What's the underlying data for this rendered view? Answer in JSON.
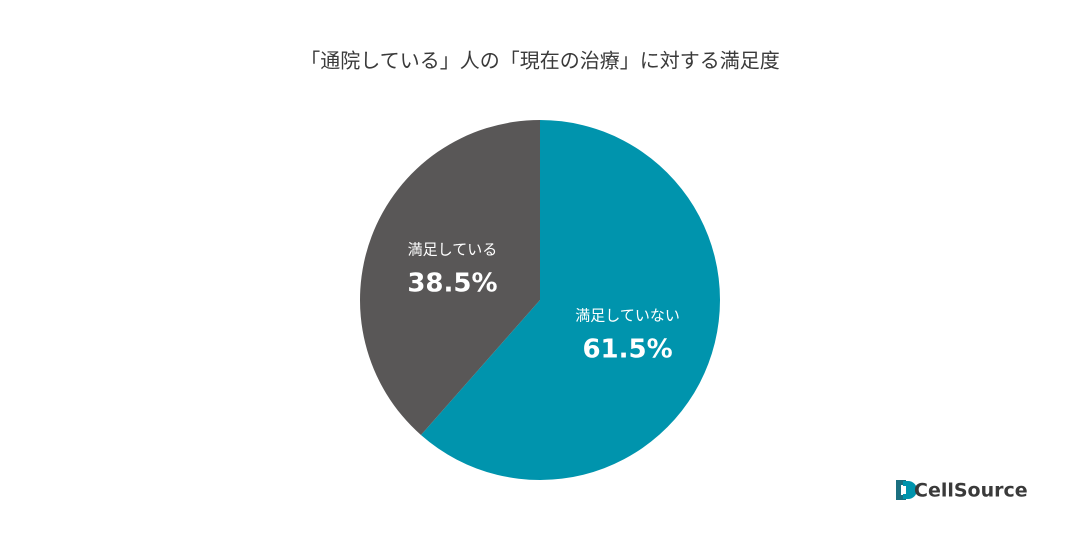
{
  "chart_data": {
    "type": "pie",
    "title": "「通院している」人の「現在の治療」に対する満足度",
    "categories": [
      "満足していない",
      "満足している"
    ],
    "values": [
      61.5,
      38.5
    ],
    "value_labels": [
      "61.5%",
      "38.5%"
    ],
    "colors": [
      "#0094ad",
      "#595757"
    ]
  },
  "logo": {
    "text": "CellSource"
  }
}
